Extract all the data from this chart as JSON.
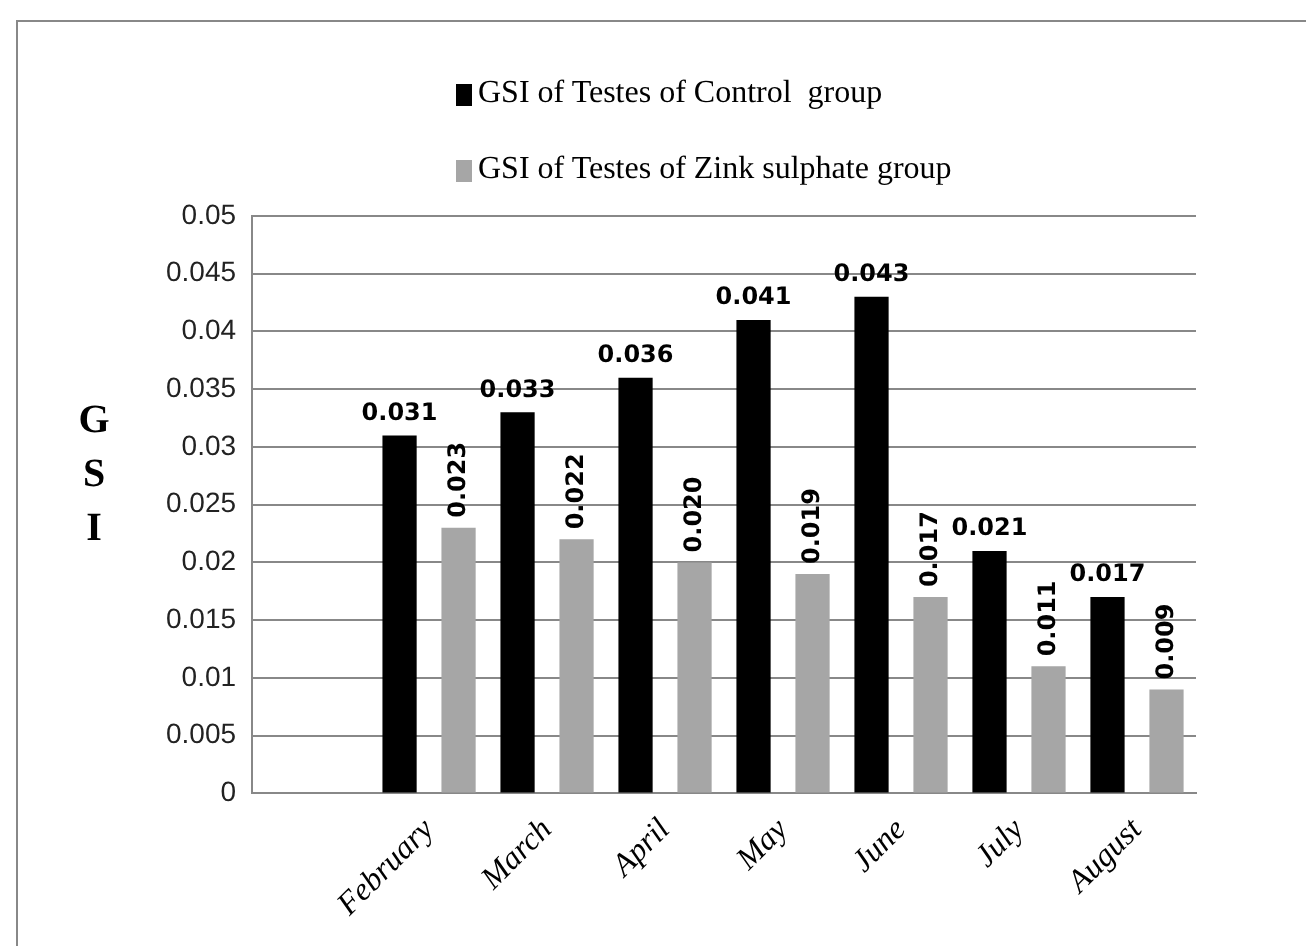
{
  "chart_data": {
    "type": "bar",
    "ylabel": "GSI",
    "categories": [
      null,
      "February",
      "March",
      "April",
      "May",
      "June",
      "July",
      "August"
    ],
    "series": [
      {
        "name": "GSI of Testes of Control  group",
        "color": "#000000",
        "values": [
          null,
          0.031,
          0.033,
          0.036,
          0.041,
          0.043,
          0.021,
          0.017
        ],
        "value_labels": [
          null,
          "0.031",
          "0.033",
          "0.036",
          "0.041",
          "0.043",
          "0.021",
          "0.017"
        ]
      },
      {
        "name": "GSI of Testes of Zink sulphate group",
        "color": "#a6a6a6",
        "values": [
          null,
          0.023,
          0.022,
          0.02,
          0.019,
          0.017,
          0.011,
          0.009
        ],
        "value_labels": [
          null,
          "0.023",
          "0.022",
          "0.020",
          "0.019",
          "0.017",
          "0.011",
          "0.009"
        ]
      }
    ],
    "ylim": [
      0,
      0.05
    ],
    "yticks": [
      0,
      0.005,
      0.01,
      0.015,
      0.02,
      0.025,
      0.03,
      0.035,
      0.04,
      0.045,
      0.05
    ],
    "grid": "y",
    "legend": "top"
  }
}
